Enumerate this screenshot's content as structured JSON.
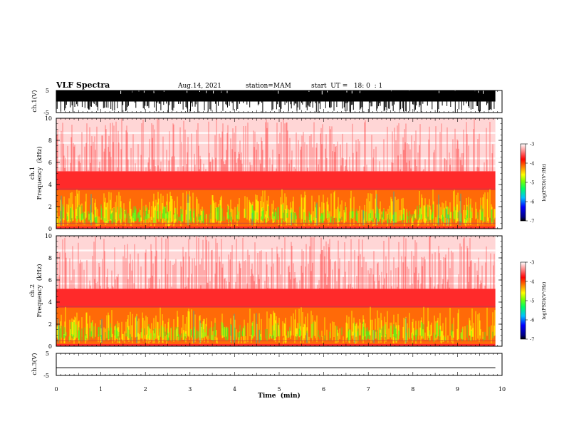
{
  "header": {
    "title": "VLF Spectra",
    "date": "Aug.14, 2021",
    "station": "station=MAM",
    "start": "start  UT =   18: 0  : 1"
  },
  "colors": {
    "colormap": [
      "#000080",
      "#0000ff",
      "#00c0ff",
      "#00ff60",
      "#80ff00",
      "#ffff00",
      "#ff8000",
      "#ff0000",
      "#ff8080",
      "#ffffff"
    ],
    "frame": "#000000",
    "background": "#ffffff"
  },
  "chart_data": [
    {
      "type": "line",
      "name_key": "ch1-waveform",
      "ylabel": "ch.1(V)",
      "ylim": [
        -5,
        5
      ],
      "yticks": [
        "5",
        "-5"
      ],
      "xlim": [
        0,
        10
      ],
      "description_level": "dense bursts saturating 0 to 5 V"
    },
    {
      "type": "heatmap",
      "ylabel_line1": "ch.1",
      "ylabel_line2": "Frequency  (kHz)",
      "ylim": [
        0,
        10
      ],
      "yticks": [
        "0",
        "2",
        "4",
        "6",
        "8",
        "10"
      ],
      "xlim": [
        0,
        10.0
      ],
      "data_extent_min": [
        0,
        9.85
      ],
      "colorbar": {
        "range": [
          -7,
          -3
        ],
        "ticks": [
          "-3",
          "-4",
          "-5",
          "-6",
          "-7"
        ],
        "label": "log(PSD)(V²/Hz)"
      }
    },
    {
      "type": "heatmap",
      "ylabel_line1": "ch.2",
      "ylabel_line2": "Frequency  (kHz)",
      "ylim": [
        0,
        10
      ],
      "yticks": [
        "0",
        "2",
        "4",
        "6",
        "8",
        "10"
      ],
      "xlim": [
        0,
        10.0
      ],
      "data_extent_min": [
        0,
        9.85
      ],
      "colorbar": {
        "range": [
          -7,
          -3
        ],
        "ticks": [
          "-3",
          "-4",
          "-5",
          "-6",
          "-7"
        ],
        "label": "log(PSD)(V²/Hz)"
      }
    },
    {
      "type": "line",
      "ylabel": "ch.3(V)",
      "ylim": [
        -5,
        5
      ],
      "yticks": [
        "5",
        "-5"
      ],
      "xlim": [
        0,
        10
      ],
      "flat_value": -1.5
    }
  ],
  "xaxis": {
    "label": "Time  (min)",
    "ticks": [
      "0",
      "1",
      "2",
      "3",
      "4",
      "5",
      "6",
      "7",
      "8",
      "9",
      "10"
    ]
  }
}
